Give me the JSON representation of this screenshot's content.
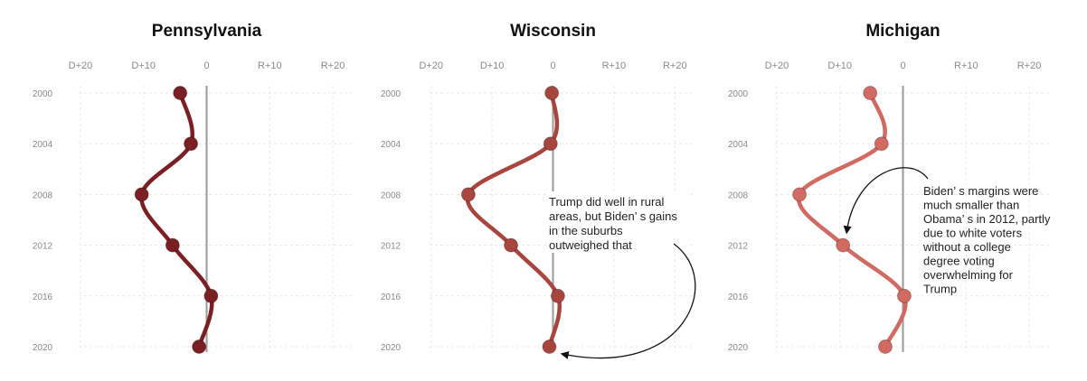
{
  "chart_data": [
    {
      "type": "line",
      "title": "Pennsylvania",
      "x_ticks": [
        "D+20",
        "D+10",
        "0",
        "R+10",
        "R+20"
      ],
      "x_tick_values": [
        -20,
        -10,
        0,
        10,
        20
      ],
      "xlim": [
        -21,
        21
      ],
      "years": [
        2000,
        2004,
        2008,
        2012,
        2016,
        2020
      ],
      "series": [
        {
          "values": [
            -4.2,
            -2.5,
            -10.3,
            -5.4,
            0.7,
            -1.2
          ]
        }
      ],
      "color": "#7a1f24",
      "grid": true,
      "annotation": null
    },
    {
      "type": "line",
      "title": "Wisconsin",
      "x_ticks": [
        "D+20",
        "D+10",
        "0",
        "R+10",
        "R+20"
      ],
      "x_tick_values": [
        -20,
        -10,
        0,
        10,
        20
      ],
      "xlim": [
        -21,
        21
      ],
      "years": [
        2000,
        2004,
        2008,
        2012,
        2016,
        2020
      ],
      "series": [
        {
          "values": [
            -0.2,
            -0.4,
            -13.9,
            -6.9,
            0.8,
            -0.6
          ]
        }
      ],
      "color": "#a8453f",
      "grid": true,
      "annotation": {
        "lines": [
          "Trump did well in rural",
          "areas, but Biden’ s gains",
          "in the suburbs",
          "outweighed that"
        ],
        "arrow_to_year": 2020
      }
    },
    {
      "type": "line",
      "title": "Michigan",
      "x_ticks": [
        "D+20",
        "D+10",
        "0",
        "R+10",
        "R+20"
      ],
      "x_tick_values": [
        -20,
        -10,
        0,
        10,
        20
      ],
      "xlim": [
        -21,
        21
      ],
      "years": [
        2000,
        2004,
        2008,
        2012,
        2016,
        2020
      ],
      "series": [
        {
          "values": [
            -5.2,
            -3.4,
            -16.4,
            -9.5,
            0.2,
            -2.8
          ]
        }
      ],
      "color": "#d06a63",
      "grid": true,
      "annotation": {
        "lines": [
          "Biden’ s margins were",
          "much smaller than",
          "Obama’ s in 2012, partly",
          "due to white voters",
          "without a college",
          "degree voting",
          "overwhelming for",
          "Trump"
        ],
        "arrow_to_year": 2012
      }
    }
  ]
}
